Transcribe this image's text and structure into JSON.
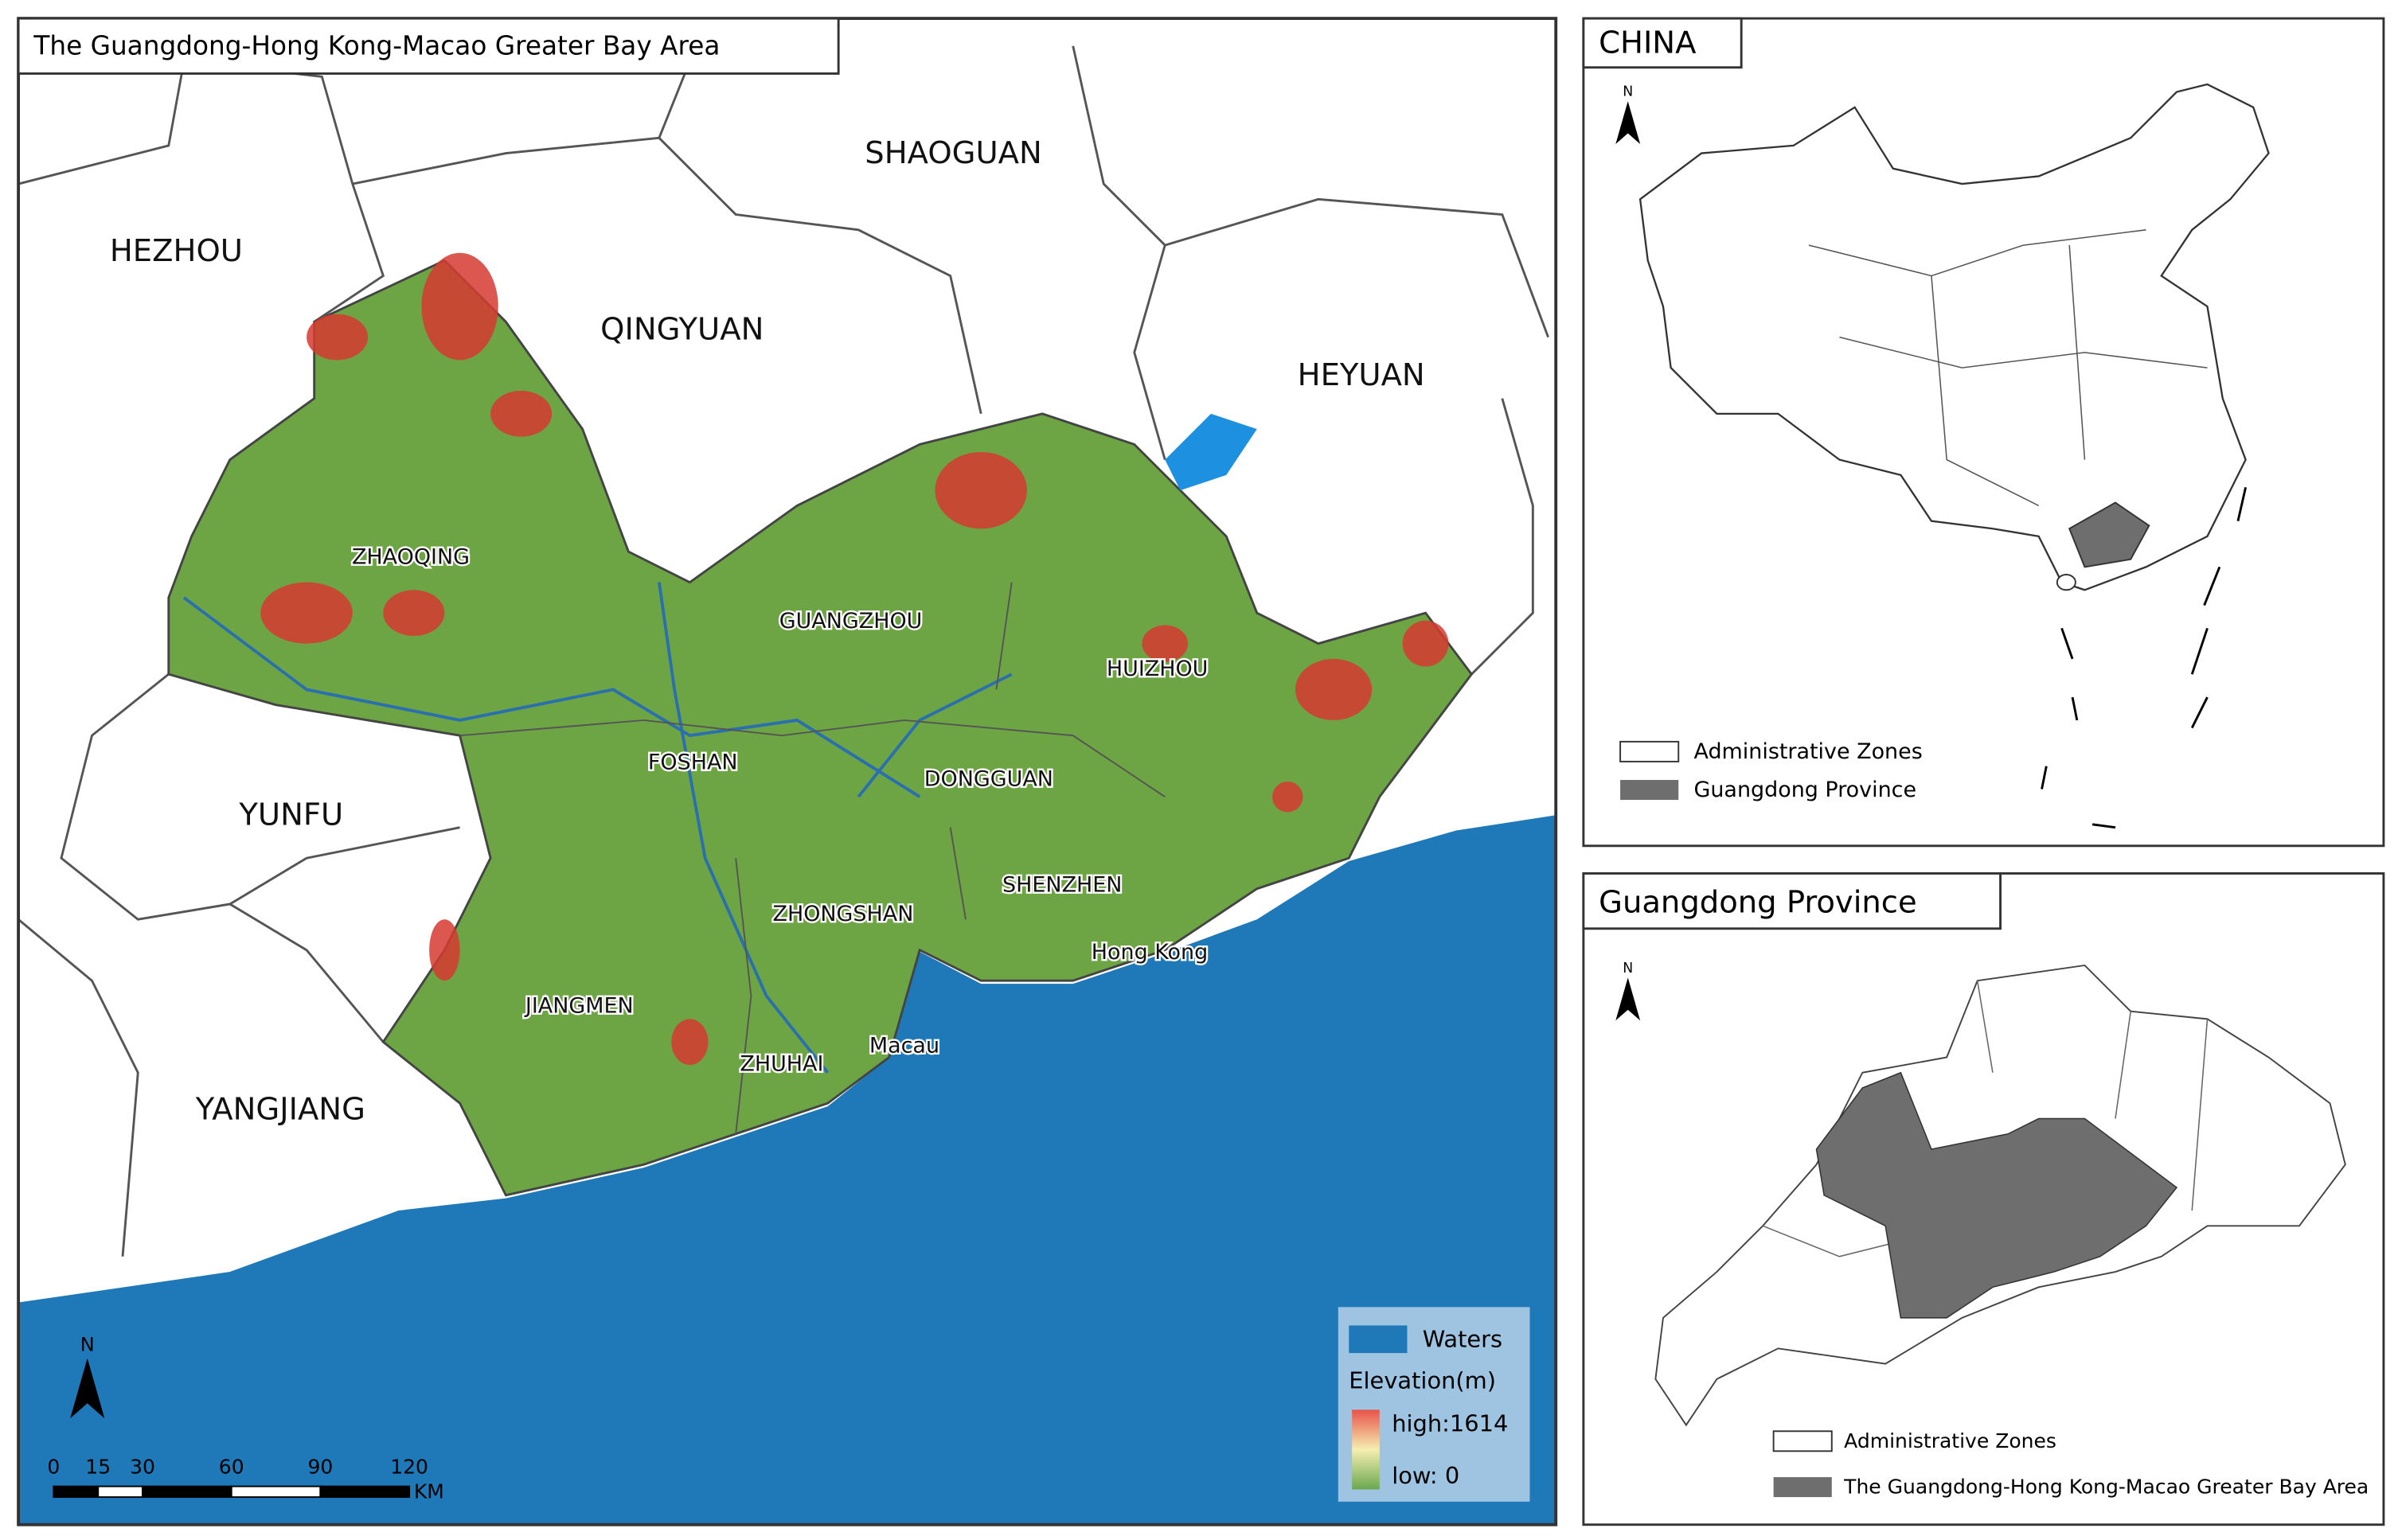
{
  "main_map": {
    "title": "The Guangdong-Hong Kong-Macao Greater Bay Area",
    "outer_cities": [
      "HEZHOU",
      "SHAOGUAN",
      "QINGYUAN",
      "HEYUAN",
      "YUNFU",
      "YANGJIANG"
    ],
    "bay_cities": [
      "ZHAOQING",
      "GUANGZHOU",
      "HUIZHOU",
      "FOSHAN",
      "DONGGUAN",
      "SHENZHEN",
      "ZHONGSHAN",
      "Hong Kong",
      "JIANGMEN",
      "ZHUHAI",
      "Macau"
    ],
    "legend": {
      "waters": "Waters",
      "elevation_title": "Elevation(m)",
      "high": "high:1614",
      "low": "low: 0"
    },
    "north": "N",
    "scale": {
      "ticks": [
        0,
        15,
        30,
        60,
        90,
        120
      ],
      "unit": "KM"
    }
  },
  "china_inset": {
    "title": "CHINA",
    "north": "N",
    "legend": [
      "Administrative Zones",
      "Guangdong Province"
    ]
  },
  "guangdong_inset": {
    "title": "Guangdong Province",
    "north": "N",
    "legend": [
      "Administrative Zones",
      "The Guangdong-Hong Kong-Macao Greater Bay Area"
    ]
  }
}
